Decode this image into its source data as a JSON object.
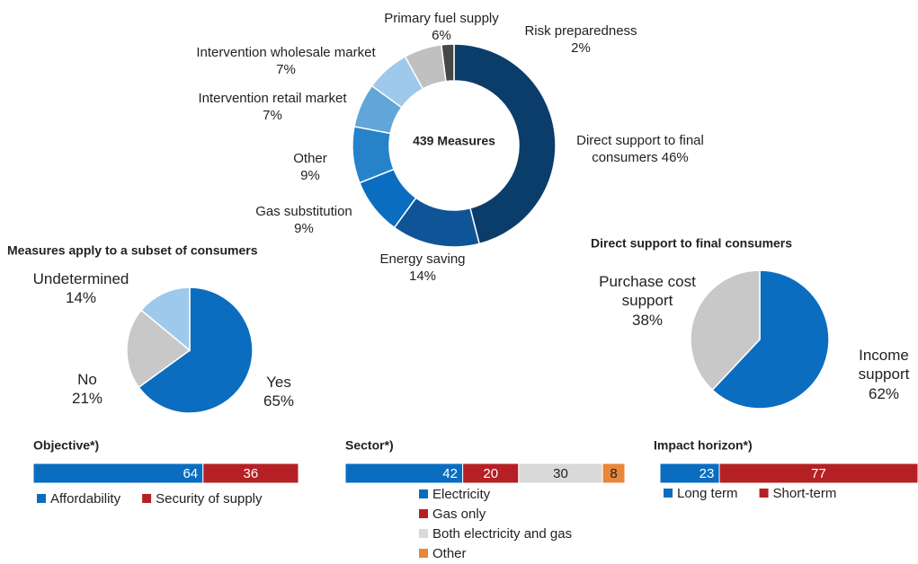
{
  "chart_data": [
    {
      "type": "donut",
      "center_label": "439 Measures",
      "categories": [
        "Direct support to final consumers",
        "Energy saving",
        "Gas substitution",
        "Other",
        "Intervention retail market",
        "Intervention wholesale market",
        "Primary fuel supply",
        "Risk preparedness"
      ],
      "values": [
        46,
        14,
        9,
        9,
        7,
        7,
        6,
        2
      ],
      "value_labels": [
        "46%",
        "14%",
        "9%",
        "9%",
        "7%",
        "7%",
        "6%",
        "2%"
      ],
      "colors": [
        "#0b3d6b",
        "#0f5496",
        "#0b6dbf",
        "#2683c9",
        "#62a5d8",
        "#9fc9ea",
        "#c0c0c0",
        "#474747"
      ]
    },
    {
      "type": "pie",
      "title": "Measures apply to a subset of consumers",
      "categories": [
        "Yes",
        "No",
        "Undetermined"
      ],
      "values": [
        65,
        21,
        14
      ],
      "value_labels": [
        "65%",
        "21%",
        "14%"
      ],
      "colors": [
        "#0b6dbf",
        "#c8c8c8",
        "#9fc9ea"
      ]
    },
    {
      "type": "pie",
      "title": "Direct support to final consumers",
      "categories": [
        "Income support",
        "Purchase cost support"
      ],
      "values": [
        62,
        38
      ],
      "value_labels": [
        "62%",
        "38%"
      ],
      "colors": [
        "#0b6dbf",
        "#c8c8c8"
      ]
    },
    {
      "type": "stacked_bar",
      "title": "Objective*)",
      "xlim": [
        0,
        100
      ],
      "series": [
        {
          "name": "Affordability",
          "color": "#0b6dbf",
          "values": [
            64
          ]
        },
        {
          "name": "Security of supply",
          "color": "#b52025",
          "values": [
            36
          ]
        }
      ]
    },
    {
      "type": "stacked_bar",
      "title": "Sector*)",
      "xlim": [
        0,
        100
      ],
      "series": [
        {
          "name": "Electricity",
          "color": "#0b6dbf",
          "values": [
            42
          ]
        },
        {
          "name": "Gas only",
          "color": "#b52025",
          "values": [
            20
          ]
        },
        {
          "name": "Both electricity and gas",
          "color": "#d9d9d9",
          "values": [
            30
          ]
        },
        {
          "name": "Other",
          "color": "#e8863a",
          "values": [
            8
          ]
        }
      ]
    },
    {
      "type": "stacked_bar",
      "title": "Impact horizon*)",
      "xlim": [
        0,
        100
      ],
      "series": [
        {
          "name": "Long term",
          "color": "#0b6dbf",
          "values": [
            23
          ]
        },
        {
          "name": "Short-term",
          "color": "#b52025",
          "values": [
            77
          ]
        }
      ]
    }
  ]
}
